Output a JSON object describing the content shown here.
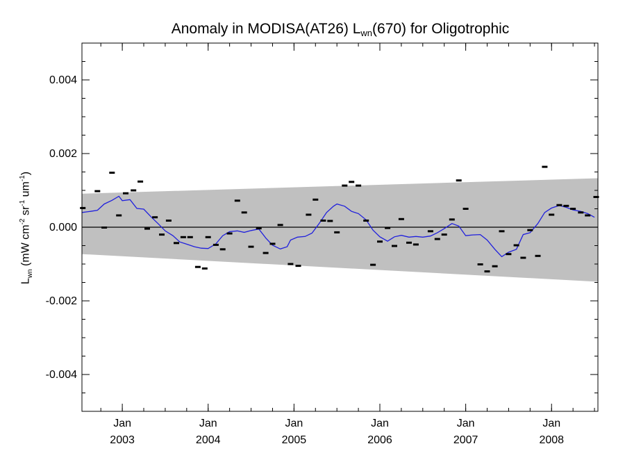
{
  "chart_data": {
    "type": "scatter",
    "title": {
      "prefix": "Anomaly in MODISA(AT26) L",
      "sub": "wn",
      "suffix": "(670) for Oligotrophic"
    },
    "ylabel": {
      "a": "L",
      "a_sub": "wn",
      "b": " (mW cm",
      "b_sup": "-2",
      "c": " sr",
      "c_sup": "-1",
      "d": " um",
      "d_sup": "-1",
      "e": ")"
    },
    "xlim": [
      2002.53,
      2008.54
    ],
    "ylim": [
      -0.005,
      0.005
    ],
    "yticks": [
      -0.004,
      -0.002,
      0.0,
      0.002,
      0.004
    ],
    "ytick_labels": [
      "-0.004",
      "-0.002",
      "0.000",
      "0.002",
      "0.004"
    ],
    "yminor_step": 0.0005,
    "xticks": [
      {
        "x": 2003.0,
        "month": "Jan",
        "year": "2003"
      },
      {
        "x": 2004.0,
        "month": "Jan",
        "year": "2004"
      },
      {
        "x": 2005.0,
        "month": "Jan",
        "year": "2005"
      },
      {
        "x": 2006.0,
        "month": "Jan",
        "year": "2006"
      },
      {
        "x": 2007.0,
        "month": "Jan",
        "year": "2007"
      },
      {
        "x": 2008.0,
        "month": "Jan",
        "year": "2008"
      }
    ],
    "xminor_step": 0.25,
    "zero_line": 0.0,
    "band": {
      "x": [
        2002.53,
        2008.54
      ],
      "upper": [
        0.00091,
        0.00133
      ],
      "lower": [
        -0.00073,
        -0.00148
      ],
      "color": "#c0c0c0"
    },
    "monthly_anomaly": {
      "color": "#000000",
      "points": [
        [
          2002.54,
          0.00052
        ],
        [
          2002.71,
          0.00098
        ],
        [
          2002.79,
          -1e-05
        ],
        [
          2002.88,
          0.00148
        ],
        [
          2002.96,
          0.00032
        ],
        [
          2003.04,
          0.00092
        ],
        [
          2003.13,
          0.001
        ],
        [
          2003.21,
          0.00124
        ],
        [
          2003.29,
          -4e-05
        ],
        [
          2003.38,
          0.00027
        ],
        [
          2003.46,
          -0.0002
        ],
        [
          2003.54,
          0.00018
        ],
        [
          2003.63,
          -0.00043
        ],
        [
          2003.71,
          -0.00027
        ],
        [
          2003.79,
          -0.00027
        ],
        [
          2003.88,
          -0.00108
        ],
        [
          2003.96,
          -0.00112
        ],
        [
          2004.0,
          -0.00027
        ],
        [
          2004.09,
          -0.00048
        ],
        [
          2004.17,
          -0.0006
        ],
        [
          2004.25,
          -0.00017
        ],
        [
          2004.34,
          0.00072
        ],
        [
          2004.42,
          0.0004
        ],
        [
          2004.5,
          -0.00053
        ],
        [
          2004.59,
          -3e-05
        ],
        [
          2004.67,
          -0.0007
        ],
        [
          2004.75,
          -0.00045
        ],
        [
          2004.84,
          6e-05
        ],
        [
          2004.96,
          -0.001
        ],
        [
          2005.05,
          -0.00105
        ],
        [
          2005.17,
          0.00034
        ],
        [
          2005.25,
          0.00075
        ],
        [
          2005.34,
          0.00018
        ],
        [
          2005.42,
          0.00017
        ],
        [
          2005.5,
          -0.00014
        ],
        [
          2005.59,
          0.00113
        ],
        [
          2005.67,
          0.00123
        ],
        [
          2005.75,
          0.00113
        ],
        [
          2005.84,
          0.00018
        ],
        [
          2005.92,
          -0.00102
        ],
        [
          2006.0,
          -0.00039
        ],
        [
          2006.09,
          -2e-05
        ],
        [
          2006.17,
          -0.00051
        ],
        [
          2006.25,
          0.00022
        ],
        [
          2006.34,
          -0.00042
        ],
        [
          2006.42,
          -0.00047
        ],
        [
          2006.59,
          -0.00011
        ],
        [
          2006.67,
          -0.00032
        ],
        [
          2006.75,
          -0.0002
        ],
        [
          2006.84,
          0.00021
        ],
        [
          2006.92,
          0.00127
        ],
        [
          2007.0,
          0.0005
        ],
        [
          2007.17,
          -0.00101
        ],
        [
          2007.25,
          -0.0012
        ],
        [
          2007.34,
          -0.00106
        ],
        [
          2007.42,
          -0.00011
        ],
        [
          2007.5,
          -0.00073
        ],
        [
          2007.59,
          -0.00049
        ],
        [
          2007.67,
          -0.00083
        ],
        [
          2007.75,
          -8e-05
        ],
        [
          2007.84,
          -0.00078
        ],
        [
          2007.92,
          0.00164
        ],
        [
          2008.0,
          0.00034
        ],
        [
          2008.09,
          0.0006
        ],
        [
          2008.17,
          0.00058
        ],
        [
          2008.25,
          0.0005
        ],
        [
          2008.34,
          0.0004
        ],
        [
          2008.42,
          0.00032
        ],
        [
          2008.52,
          0.00082
        ]
      ]
    },
    "smoothed_anomaly": {
      "color": "#1f1fdd",
      "points": [
        [
          2002.53,
          0.0004
        ],
        [
          2002.63,
          0.00043
        ],
        [
          2002.71,
          0.00046
        ],
        [
          2002.79,
          0.00063
        ],
        [
          2002.88,
          0.00073
        ],
        [
          2002.96,
          0.00084
        ],
        [
          2003.0,
          0.00072
        ],
        [
          2003.09,
          0.00075
        ],
        [
          2003.17,
          0.00051
        ],
        [
          2003.25,
          0.00049
        ],
        [
          2003.34,
          0.00027
        ],
        [
          2003.42,
          9e-05
        ],
        [
          2003.5,
          -0.0001
        ],
        [
          2003.59,
          -0.00023
        ],
        [
          2003.67,
          -0.0004
        ],
        [
          2003.75,
          -0.00046
        ],
        [
          2003.84,
          -0.00053
        ],
        [
          2003.92,
          -0.00057
        ],
        [
          2004.0,
          -0.00058
        ],
        [
          2004.09,
          -0.00045
        ],
        [
          2004.17,
          -0.00023
        ],
        [
          2004.25,
          -0.00012
        ],
        [
          2004.34,
          -0.0001
        ],
        [
          2004.42,
          -0.00014
        ],
        [
          2004.5,
          -9e-05
        ],
        [
          2004.59,
          -5e-05
        ],
        [
          2004.67,
          -0.00029
        ],
        [
          2004.75,
          -0.00049
        ],
        [
          2004.84,
          -0.00059
        ],
        [
          2004.92,
          -0.00053
        ],
        [
          2004.96,
          -0.00035
        ],
        [
          2005.04,
          -0.00027
        ],
        [
          2005.13,
          -0.00025
        ],
        [
          2005.21,
          -0.00016
        ],
        [
          2005.29,
          9e-05
        ],
        [
          2005.38,
          0.0004
        ],
        [
          2005.46,
          0.00057
        ],
        [
          2005.5,
          0.00063
        ],
        [
          2005.59,
          0.00057
        ],
        [
          2005.67,
          0.00043
        ],
        [
          2005.75,
          0.00037
        ],
        [
          2005.84,
          0.0002
        ],
        [
          2005.92,
          -8e-05
        ],
        [
          2006.0,
          -0.00026
        ],
        [
          2006.09,
          -0.00038
        ],
        [
          2006.17,
          -0.00026
        ],
        [
          2006.25,
          -0.00022
        ],
        [
          2006.34,
          -0.00027
        ],
        [
          2006.42,
          -0.00025
        ],
        [
          2006.5,
          -0.00027
        ],
        [
          2006.59,
          -0.00024
        ],
        [
          2006.67,
          -0.00015
        ],
        [
          2006.75,
          -4e-05
        ],
        [
          2006.84,
          0.0001
        ],
        [
          2006.92,
          3e-05
        ],
        [
          2007.0,
          -0.00023
        ],
        [
          2007.08,
          -0.00021
        ],
        [
          2007.17,
          -0.0002
        ],
        [
          2007.25,
          -0.00035
        ],
        [
          2007.34,
          -0.0006
        ],
        [
          2007.42,
          -0.0008
        ],
        [
          2007.5,
          -0.00068
        ],
        [
          2007.59,
          -0.0006
        ],
        [
          2007.67,
          -0.0002
        ],
        [
          2007.75,
          -0.00015
        ],
        [
          2007.84,
          0.0001
        ],
        [
          2007.92,
          0.0004
        ],
        [
          2008.0,
          0.00052
        ],
        [
          2008.09,
          0.00059
        ],
        [
          2008.17,
          0.00054
        ],
        [
          2008.25,
          0.00047
        ],
        [
          2008.34,
          0.00043
        ],
        [
          2008.42,
          0.00037
        ],
        [
          2008.5,
          0.00027
        ]
      ]
    }
  }
}
